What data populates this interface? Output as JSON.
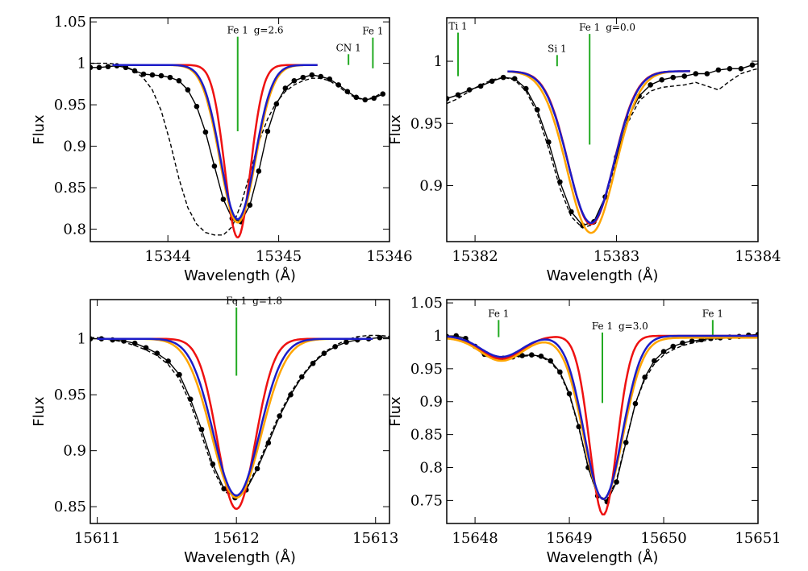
{
  "chart_data": [
    {
      "type": "line",
      "panel": "top-left",
      "xlabel": "Wavelength (Å)",
      "ylabel": "Flux",
      "xlim": [
        15343.3,
        15346
      ],
      "ylim": [
        0.785,
        1.055
      ],
      "xticks": [
        15344,
        15345,
        15346
      ],
      "xtick_labels": [
        "15344",
        "15345",
        "15346"
      ],
      "yticks": [
        0.8,
        0.85,
        0.9,
        0.95,
        1,
        1.05
      ],
      "ytick_labels": [
        "0.8",
        "0.85",
        "0.9",
        "0.95",
        "1",
        "1.05"
      ],
      "lines": [
        {
          "label": "Fe 1",
          "x": 15344.63,
          "y_top": 1.032,
          "y_bottom": 0.918,
          "text": "g=2.6"
        },
        {
          "label": "CN 1",
          "x": 15345.63,
          "y_top": 1.011,
          "y_bottom": 0.998,
          "text": ""
        },
        {
          "label": "Fe 1",
          "x": 15345.85,
          "y_top": 1.031,
          "y_bottom": 0.994,
          "text": ""
        }
      ],
      "profile": {
        "center": 15344.63,
        "continuum": 0.998,
        "range": [
          15343.5,
          15345.35
        ]
      },
      "series": [
        {
          "name": "observed",
          "color": "#000000",
          "style": "solid-dots",
          "x": [
            15343.3,
            15343.38,
            15343.46,
            15343.54,
            15343.62,
            15343.7,
            15343.78,
            15343.86,
            15343.94,
            15344.02,
            15344.1,
            15344.18,
            15344.26,
            15344.34,
            15344.42,
            15344.5,
            15344.58,
            15344.66,
            15344.74,
            15344.82,
            15344.9,
            15344.98,
            15345.06,
            15345.14,
            15345.22,
            15345.3,
            15345.38,
            15345.46,
            15345.54,
            15345.62,
            15345.7,
            15345.78,
            15345.86,
            15345.94
          ],
          "y": [
            0.995,
            0.995,
            0.996,
            0.997,
            0.995,
            0.991,
            0.987,
            0.986,
            0.985,
            0.983,
            0.979,
            0.968,
            0.948,
            0.917,
            0.876,
            0.836,
            0.813,
            0.809,
            0.829,
            0.87,
            0.918,
            0.951,
            0.97,
            0.979,
            0.983,
            0.986,
            0.984,
            0.981,
            0.974,
            0.966,
            0.959,
            0.956,
            0.958,
            0.963
          ]
        },
        {
          "name": "dashed",
          "color": "#000000",
          "style": "dashed",
          "x": [
            15343.3,
            15343.38,
            15343.46,
            15343.54,
            15343.62,
            15343.7,
            15343.78,
            15343.86,
            15343.94,
            15344.02,
            15344.1,
            15344.18,
            15344.26,
            15344.34,
            15344.42,
            15344.5,
            15344.58,
            15344.66,
            15344.74,
            15344.82,
            15344.9,
            15344.98,
            15345.06,
            15345.14,
            15345.22,
            15345.3,
            15345.38,
            15345.46,
            15345.54,
            15345.62,
            15345.7,
            15345.78,
            15345.86,
            15345.94
          ],
          "y": [
            1.0,
            1.0,
            1.0,
            0.999,
            0.996,
            0.991,
            0.982,
            0.968,
            0.943,
            0.905,
            0.861,
            0.826,
            0.806,
            0.796,
            0.793,
            0.793,
            0.803,
            0.83,
            0.867,
            0.905,
            0.933,
            0.953,
            0.966,
            0.974,
            0.979,
            0.982,
            0.982,
            0.979,
            0.972,
            0.964,
            0.958,
            0.956,
            0.959,
            0.965
          ]
        },
        {
          "name": "model-red",
          "color": "#ee1111",
          "style": "solid",
          "depth": 0.208,
          "sigma": 0.115
        },
        {
          "name": "model-orange",
          "color": "#ffa500",
          "style": "solid",
          "depth": 0.19,
          "sigma": 0.16
        },
        {
          "name": "model-blue",
          "color": "#1c1cc8",
          "style": "solid",
          "depth": 0.186,
          "sigma": 0.155
        }
      ]
    },
    {
      "type": "line",
      "panel": "top-right",
      "xlabel": "Wavelength (Å)",
      "ylabel": "Flux",
      "xlim": [
        15381.8,
        15384
      ],
      "ylim": [
        0.855,
        1.035
      ],
      "xticks": [
        15382,
        15383,
        15384
      ],
      "xtick_labels": [
        "15382",
        "15383",
        "15384"
      ],
      "yticks": [
        0.9,
        0.95,
        1
      ],
      "ytick_labels": [
        "0.9",
        "0.95",
        "1"
      ],
      "lines": [
        {
          "label": "Ti 1",
          "x": 15381.88,
          "y_top": 1.023,
          "y_bottom": 0.988,
          "text": ""
        },
        {
          "label": "Si 1",
          "x": 15382.58,
          "y_top": 1.005,
          "y_bottom": 0.996,
          "text": ""
        },
        {
          "label": "Fe 1",
          "x": 15382.81,
          "y_top": 1.022,
          "y_bottom": 0.933,
          "text": "g=0.0"
        }
      ],
      "profile": {
        "center": 15382.82,
        "continuum": 0.992,
        "range": [
          15382.23,
          15383.52
        ]
      },
      "series": [
        {
          "name": "observed",
          "color": "#000000",
          "style": "solid-dots",
          "x": [
            15381.8,
            15381.88,
            15381.96,
            15382.04,
            15382.12,
            15382.2,
            15382.28,
            15382.36,
            15382.44,
            15382.52,
            15382.6,
            15382.68,
            15382.76,
            15382.84,
            15382.92,
            15383.0,
            15383.08,
            15383.16,
            15383.24,
            15383.32,
            15383.4,
            15383.48,
            15383.56,
            15383.64,
            15383.72,
            15383.8,
            15383.88,
            15383.96,
            15384.04
          ],
          "y": [
            0.97,
            0.973,
            0.977,
            0.98,
            0.984,
            0.987,
            0.986,
            0.978,
            0.961,
            0.935,
            0.903,
            0.879,
            0.868,
            0.871,
            0.891,
            0.923,
            0.954,
            0.972,
            0.981,
            0.985,
            0.987,
            0.988,
            0.99,
            0.99,
            0.993,
            0.994,
            0.994,
            0.997,
            0.999
          ]
        },
        {
          "name": "dashed",
          "color": "#000000",
          "style": "dashed",
          "x": [
            15381.8,
            15381.88,
            15381.96,
            15382.04,
            15382.12,
            15382.2,
            15382.28,
            15382.36,
            15382.44,
            15382.52,
            15382.6,
            15382.68,
            15382.76,
            15382.84,
            15382.92,
            15383.0,
            15383.08,
            15383.16,
            15383.24,
            15383.32,
            15383.4,
            15383.48,
            15383.56,
            15383.64,
            15383.72,
            15383.8,
            15383.88,
            15383.96,
            15384.04
          ],
          "y": [
            0.966,
            0.97,
            0.976,
            0.981,
            0.985,
            0.987,
            0.985,
            0.976,
            0.958,
            0.93,
            0.898,
            0.875,
            0.866,
            0.869,
            0.889,
            0.921,
            0.951,
            0.968,
            0.976,
            0.979,
            0.98,
            0.981,
            0.983,
            0.98,
            0.977,
            0.984,
            0.99,
            0.993,
            0.995
          ]
        },
        {
          "name": "model-red",
          "color": "#ee1111",
          "style": "solid",
          "depth": 0.123,
          "sigma": 0.16
        },
        {
          "name": "model-orange",
          "color": "#ffa500",
          "style": "solid",
          "depth": 0.13,
          "sigma": 0.17
        },
        {
          "name": "model-blue",
          "color": "#1c1cc8",
          "style": "solid",
          "depth": 0.122,
          "sigma": 0.162
        }
      ]
    },
    {
      "type": "line",
      "panel": "bottom-left",
      "xlabel": "Wavelength (Å)",
      "ylabel": "Flux",
      "xlim": [
        15610.95,
        15613.1
      ],
      "ylim": [
        0.835,
        1.035
      ],
      "xticks": [
        15611,
        15612,
        15613
      ],
      "xtick_labels": [
        "15611",
        "15612",
        "15613"
      ],
      "yticks": [
        0.85,
        0.9,
        0.95,
        1
      ],
      "ytick_labels": [
        "0.85",
        "0.9",
        "0.95",
        "1"
      ],
      "lines": [
        {
          "label": "Fe 1",
          "x": 15612.0,
          "y_top": 1.028,
          "y_bottom": 0.967,
          "text": "g=1.8"
        }
      ],
      "profile": {
        "center": 15612.0,
        "continuum": 1.0,
        "range": [
          15611.0,
          15612.98
        ]
      },
      "series": [
        {
          "name": "observed",
          "color": "#000000",
          "style": "solid-dots",
          "x": [
            15610.95,
            15611.03,
            15611.11,
            15611.19,
            15611.27,
            15611.35,
            15611.43,
            15611.51,
            15611.59,
            15611.67,
            15611.75,
            15611.83,
            15611.91,
            15611.99,
            15612.07,
            15612.15,
            15612.23,
            15612.31,
            15612.39,
            15612.47,
            15612.55,
            15612.63,
            15612.71,
            15612.79,
            15612.87,
            15612.95,
            15613.03,
            15613.11
          ],
          "y": [
            1.0,
            1.0,
            0.999,
            0.998,
            0.996,
            0.992,
            0.987,
            0.98,
            0.968,
            0.946,
            0.919,
            0.888,
            0.866,
            0.858,
            0.865,
            0.884,
            0.907,
            0.931,
            0.95,
            0.966,
            0.978,
            0.987,
            0.993,
            0.997,
            0.999,
            1.0,
            1.001,
            1.001
          ]
        },
        {
          "name": "dashed",
          "color": "#000000",
          "style": "dashed",
          "x": [
            15610.95,
            15611.03,
            15611.11,
            15611.19,
            15611.27,
            15611.35,
            15611.43,
            15611.51,
            15611.59,
            15611.67,
            15611.75,
            15611.83,
            15611.91,
            15611.99,
            15612.07,
            15612.15,
            15612.23,
            15612.31,
            15612.39,
            15612.47,
            15612.55,
            15612.63,
            15612.71,
            15612.79,
            15612.87,
            15612.95,
            15613.03,
            15613.11
          ],
          "y": [
            1.001,
            1.001,
            0.999,
            0.997,
            0.994,
            0.99,
            0.985,
            0.977,
            0.964,
            0.942,
            0.914,
            0.884,
            0.864,
            0.858,
            0.866,
            0.886,
            0.91,
            0.933,
            0.952,
            0.967,
            0.979,
            0.988,
            0.994,
            0.999,
            1.002,
            1.003,
            1.003,
            1.002
          ]
        },
        {
          "name": "model-red",
          "color": "#ee1111",
          "style": "solid",
          "depth": 0.152,
          "sigma": 0.135
        },
        {
          "name": "model-orange",
          "color": "#ffa500",
          "style": "solid",
          "depth": 0.142,
          "sigma": 0.178
        },
        {
          "name": "model-blue",
          "color": "#1c1cc8",
          "style": "solid",
          "depth": 0.14,
          "sigma": 0.165
        }
      ]
    },
    {
      "type": "line",
      "panel": "bottom-right",
      "xlabel": "Wavelength (Å)",
      "ylabel": "Flux",
      "xlim": [
        15647.7,
        15651
      ],
      "ylim": [
        0.715,
        1.055
      ],
      "xticks": [
        15648,
        15649,
        15650,
        15651
      ],
      "xtick_labels": [
        "15648",
        "15649",
        "15650",
        "15651"
      ],
      "yticks": [
        0.75,
        0.8,
        0.85,
        0.9,
        0.95,
        1,
        1.05
      ],
      "ytick_labels": [
        "0.75",
        "0.8",
        "0.85",
        "0.9",
        "0.95",
        "1",
        "1.05"
      ],
      "lines": [
        {
          "label": "Fe 1",
          "x": 15648.25,
          "y_top": 1.024,
          "y_bottom": 0.998,
          "text": ""
        },
        {
          "label": "Fe 1",
          "x": 15649.35,
          "y_top": 1.005,
          "y_bottom": 0.898,
          "text": "g=3.0"
        },
        {
          "label": "Fe 1",
          "x": 15650.52,
          "y_top": 1.024,
          "y_bottom": 0.998,
          "text": ""
        }
      ],
      "profile": {
        "center": 15649.36,
        "continuum": 1.0,
        "range": [
          15647.7,
          15651
        ]
      },
      "blend": {
        "center": 15648.28,
        "sigma": 0.22
      },
      "series": [
        {
          "name": "observed",
          "color": "#000000",
          "style": "solid-dots",
          "x": [
            15647.7,
            15647.8,
            15647.9,
            15648.0,
            15648.1,
            15648.2,
            15648.3,
            15648.4,
            15648.5,
            15648.6,
            15648.7,
            15648.8,
            15648.9,
            15649.0,
            15649.1,
            15649.2,
            15649.3,
            15649.4,
            15649.5,
            15649.6,
            15649.7,
            15649.8,
            15649.9,
            15650.0,
            15650.1,
            15650.2,
            15650.3,
            15650.4,
            15650.5,
            15650.6,
            15650.7,
            15650.8,
            15650.9,
            15651.0
          ],
          "y": [
            0.999,
            1.0,
            0.996,
            0.984,
            0.972,
            0.967,
            0.966,
            0.968,
            0.97,
            0.971,
            0.969,
            0.962,
            0.945,
            0.912,
            0.862,
            0.8,
            0.757,
            0.748,
            0.778,
            0.838,
            0.897,
            0.937,
            0.962,
            0.976,
            0.984,
            0.989,
            0.992,
            0.994,
            0.996,
            0.997,
            0.998,
            0.999,
            1.001,
            1.002
          ]
        },
        {
          "name": "dashed",
          "color": "#000000",
          "style": "dashed",
          "x": [
            15647.7,
            15647.8,
            15647.9,
            15648.0,
            15648.1,
            15648.2,
            15648.3,
            15648.4,
            15648.5,
            15648.6,
            15648.7,
            15648.8,
            15648.9,
            15649.0,
            15649.1,
            15649.2,
            15649.3,
            15649.4,
            15649.5,
            15649.6,
            15649.7,
            15649.8,
            15649.9,
            15650.0,
            15650.1,
            15650.2,
            15650.3,
            15650.4,
            15650.5,
            15650.6,
            15650.7,
            15650.8,
            15650.9,
            15651.0
          ],
          "y": [
            0.998,
            0.997,
            0.993,
            0.982,
            0.97,
            0.965,
            0.964,
            0.967,
            0.969,
            0.97,
            0.968,
            0.96,
            0.943,
            0.91,
            0.86,
            0.799,
            0.757,
            0.751,
            0.781,
            0.84,
            0.897,
            0.934,
            0.957,
            0.971,
            0.979,
            0.985,
            0.989,
            0.992,
            0.994,
            0.996,
            0.997,
            0.998,
            1.0,
            1.001
          ]
        },
        {
          "name": "model-red",
          "color": "#ee1111",
          "style": "solid",
          "depth": 0.272,
          "sigma": 0.145,
          "blend_depth": 0.035,
          "continuum_shift": 0.0
        },
        {
          "name": "model-orange",
          "color": "#ffa500",
          "style": "solid",
          "depth": 0.245,
          "sigma": 0.21,
          "blend_depth": 0.035,
          "continuum_shift": -0.003
        },
        {
          "name": "model-blue",
          "color": "#1c1cc8",
          "style": "solid",
          "depth": 0.248,
          "sigma": 0.2,
          "blend_depth": 0.032,
          "continuum_shift": 0.0
        }
      ]
    }
  ]
}
